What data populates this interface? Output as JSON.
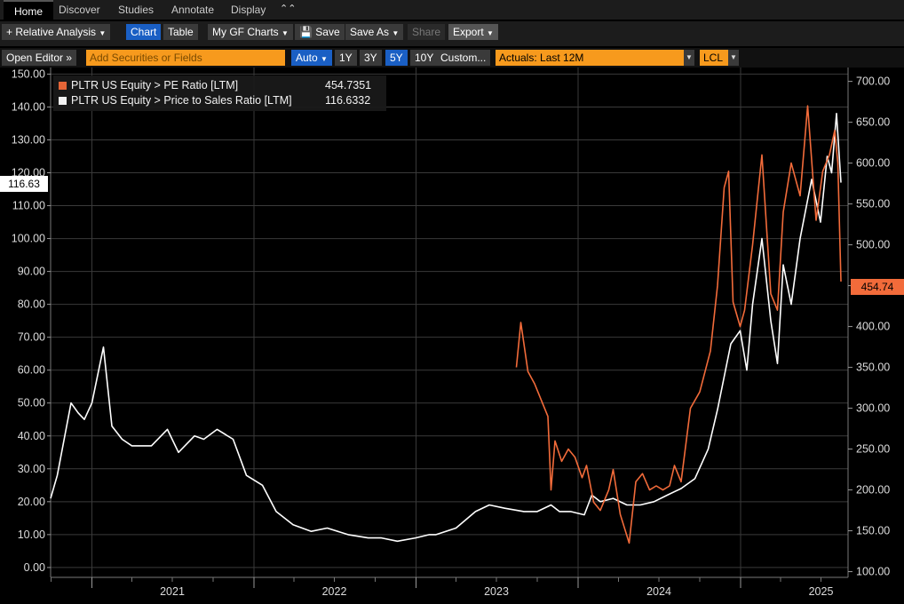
{
  "tabs": {
    "home": "Home",
    "discover": "Discover",
    "studies": "Studies",
    "annotate": "Annotate",
    "display": "Display"
  },
  "toolbar": {
    "relative": "+ Relative Analysis",
    "chart": "Chart",
    "table": "Table",
    "mygf": "My GF Charts",
    "save": "Save",
    "saveas": "Save As",
    "share": "Share",
    "export": "Export"
  },
  "toolbar2": {
    "editor": "Open Editor",
    "search_placeholder": "Add Securities or Fields",
    "auto": "Auto",
    "r1y": "1Y",
    "r3y": "3Y",
    "r5y": "5Y",
    "r10y": "10Y",
    "custom": "Custom...",
    "actuals": "Actuals: Last 12M",
    "lcl": "LCL"
  },
  "legend": {
    "pe_label": "PLTR US Equity > PE Ratio [LTM]",
    "pe_value": "454.7351",
    "ps_label": "PLTR US Equity > Price to Sales Ratio [LTM]",
    "ps_value": "116.6332"
  },
  "flags": {
    "left": "116.63",
    "right": "454.74"
  },
  "colors": {
    "pe": "#f26b3a",
    "ps": "#ffffff",
    "background": "#000000",
    "toolbar_accent": "#f79a1d"
  },
  "chart_data": {
    "type": "line",
    "x_ticks": [
      "2021",
      "2022",
      "2023",
      "2024",
      "2025"
    ],
    "left_axis": {
      "label": "",
      "ticks": [
        "150.00",
        "140.00",
        "130.00",
        "120.00",
        "110.00",
        "100.00",
        "90.00",
        "80.00",
        "70.00",
        "60.00",
        "50.00",
        "40.00",
        "30.00",
        "20.00",
        "10.00",
        "0.00"
      ],
      "ylim": [
        -3,
        152
      ]
    },
    "right_axis": {
      "label": "",
      "ticks": [
        "700.00",
        "650.00",
        "600.00",
        "550.00",
        "500.00",
        "450.00",
        "400.00",
        "350.00",
        "300.00",
        "250.00",
        "200.00",
        "150.00",
        "100.00"
      ],
      "ylim": [
        93,
        717
      ]
    },
    "series": [
      {
        "name": "PLTR US Equity > Price to Sales Ratio [LTM]",
        "axis": "left",
        "x": [
          "2020-09-30",
          "2020-10-15",
          "2020-11-15",
          "2020-12-01",
          "2020-12-15",
          "2021-01-01",
          "2021-01-27",
          "2021-02-15",
          "2021-03-10",
          "2021-04-01",
          "2021-05-15",
          "2021-06-20",
          "2021-07-15",
          "2021-08-20",
          "2021-09-10",
          "2021-10-10",
          "2021-11-15",
          "2021-12-15",
          "2022-01-20",
          "2022-02-20",
          "2022-03-30",
          "2022-05-10",
          "2022-06-15",
          "2022-08-01",
          "2022-09-15",
          "2022-10-15",
          "2022-11-20",
          "2022-12-31",
          "2023-01-31",
          "2023-02-15",
          "2023-04-01",
          "2023-05-15",
          "2023-06-15",
          "2023-07-20",
          "2023-09-01",
          "2023-10-01",
          "2023-11-01",
          "2023-11-20",
          "2023-12-15",
          "2024-01-15",
          "2024-02-01",
          "2024-02-20",
          "2024-03-20",
          "2024-04-20",
          "2024-05-20",
          "2024-06-20",
          "2024-07-20",
          "2024-08-20",
          "2024-09-20",
          "2024-10-20",
          "2024-11-10",
          "2024-11-25",
          "2024-12-10",
          "2024-12-31",
          "2025-01-15",
          "2025-01-28",
          "2025-02-18",
          "2025-03-10",
          "2025-03-25",
          "2025-04-07",
          "2025-04-25",
          "2025-05-15",
          "2025-06-10",
          "2025-06-30",
          "2025-07-15",
          "2025-07-25",
          "2025-08-05",
          "2025-08-15"
        ],
        "values": [
          21,
          28,
          50,
          47,
          45,
          50,
          67,
          43,
          39,
          37,
          37,
          42,
          35,
          40,
          39,
          42,
          39,
          28,
          25,
          17,
          13,
          11,
          12,
          10,
          9,
          9,
          8,
          9,
          10,
          10,
          12,
          17,
          19,
          18,
          17,
          17,
          19,
          17,
          17,
          16,
          22,
          20,
          21,
          19,
          19,
          20,
          22,
          24,
          27,
          36,
          48,
          58,
          68,
          72,
          60,
          80,
          100,
          75,
          62,
          92,
          80,
          100,
          118,
          105,
          125,
          120,
          138,
          117
        ]
      },
      {
        "name": "PLTR US Equity > PE Ratio [LTM]",
        "axis": "right",
        "x": [
          "2023-08-15",
          "2023-08-25",
          "2023-09-10",
          "2023-09-25",
          "2023-10-10",
          "2023-10-25",
          "2023-11-01",
          "2023-11-10",
          "2023-11-25",
          "2023-12-10",
          "2023-12-25",
          "2024-01-10",
          "2024-01-20",
          "2024-02-05",
          "2024-02-20",
          "2024-03-10",
          "2024-03-20",
          "2024-04-05",
          "2024-04-25",
          "2024-05-10",
          "2024-05-25",
          "2024-06-10",
          "2024-06-25",
          "2024-07-10",
          "2024-07-25",
          "2024-08-05",
          "2024-08-20",
          "2024-09-10",
          "2024-10-01",
          "2024-10-25",
          "2024-11-10",
          "2024-11-25",
          "2024-12-05",
          "2024-12-15",
          "2024-12-31",
          "2025-01-10",
          "2025-01-28",
          "2025-02-18",
          "2025-03-10",
          "2025-03-25",
          "2025-04-07",
          "2025-04-25",
          "2025-05-15",
          "2025-06-01",
          "2025-06-20",
          "2025-07-05",
          "2025-07-20",
          "2025-08-01",
          "2025-08-08",
          "2025-08-15"
        ],
        "values": [
          350,
          405,
          345,
          330,
          310,
          290,
          200,
          260,
          235,
          250,
          240,
          215,
          230,
          185,
          175,
          200,
          225,
          170,
          135,
          210,
          220,
          200,
          205,
          200,
          205,
          230,
          210,
          300,
          320,
          370,
          450,
          570,
          590,
          430,
          400,
          420,
          500,
          610,
          440,
          420,
          540,
          600,
          560,
          670,
          530,
          590,
          610,
          640,
          600,
          455
        ]
      }
    ]
  }
}
